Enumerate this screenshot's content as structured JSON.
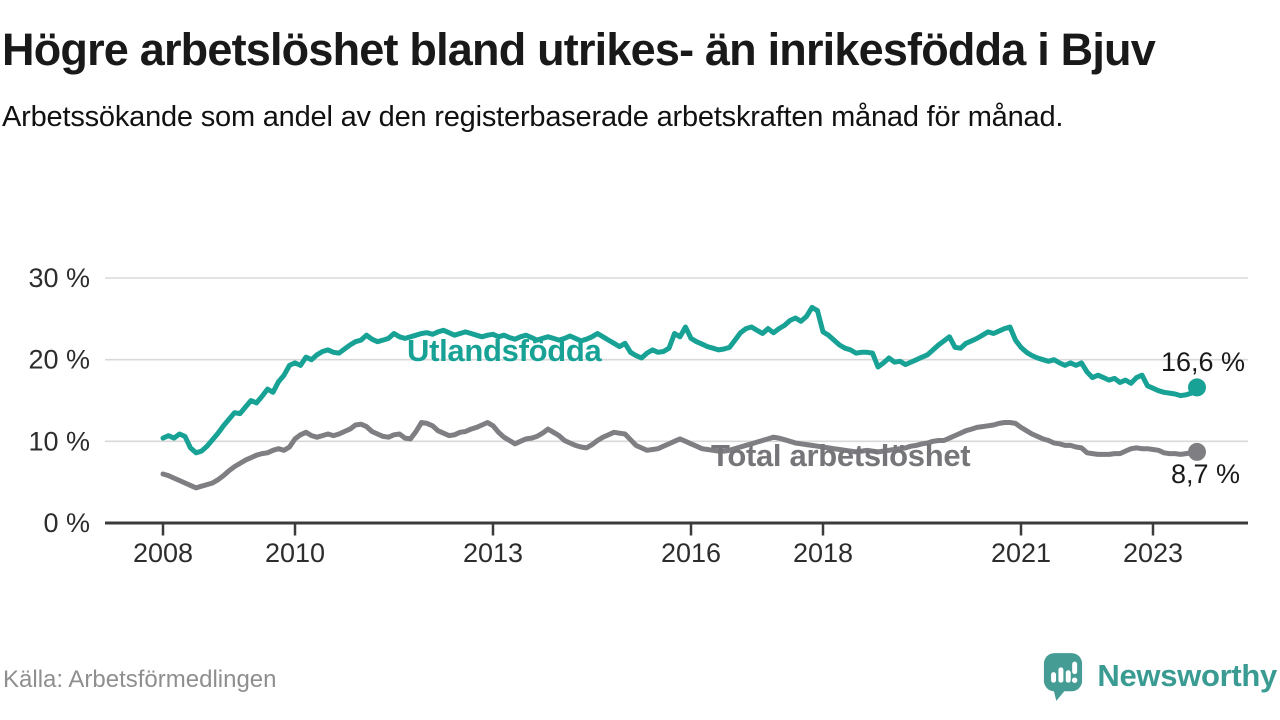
{
  "header": {
    "title": "Högre arbetslöshet bland utrikes- än inrikesfödda i Bjuv",
    "subtitle": "Arbetssökande som andel av den registerbaserade arbetskraften månad för månad."
  },
  "footer": {
    "source": "Källa: Arbetsförmedlingen",
    "brand_name": "Newsworthy",
    "brand_icon": "newsworthy-speech-bubble-bar-chart-icon"
  },
  "colors": {
    "teal_line": "#17A295",
    "gray_line": "#7F7F83",
    "gray_label": "#76767A",
    "grid": "#D8D8D8",
    "axis": "#3B3B3B",
    "tick_text": "#2D2D2D",
    "brand_teal": "#459C95"
  },
  "chart_data": {
    "type": "line",
    "title": "Högre arbetslöshet bland utrikes- än inrikesfödda i Bjuv",
    "xlabel": "",
    "ylabel": "Arbetssökande som andel av den registerbaserade arbetskraften",
    "unit": "%",
    "frequency": "monthly",
    "x_start": "2008-01",
    "x_end": "2023-09",
    "ylim": [
      0,
      31
    ],
    "grid": "horizontal",
    "y_ticks": [
      {
        "value": 30,
        "label": "30 %"
      },
      {
        "value": 20,
        "label": "20 %"
      },
      {
        "value": 10,
        "label": "10 %"
      },
      {
        "value": 0,
        "label": "0 %"
      }
    ],
    "x_ticks": [
      {
        "year": 2008,
        "label": "2008"
      },
      {
        "year": 2010,
        "label": "2010"
      },
      {
        "year": 2013,
        "label": "2013"
      },
      {
        "year": 2016,
        "label": "2016"
      },
      {
        "year": 2018,
        "label": "2018"
      },
      {
        "year": 2021,
        "label": "2021"
      },
      {
        "year": 2023,
        "label": "2023"
      }
    ],
    "series": [
      {
        "name": "Utlandsfödda",
        "color": "#17A295",
        "end_label": "16,6 %",
        "last_value": 16.6,
        "values": [
          10.4,
          10.7,
          10.4,
          10.9,
          10.6,
          9.2,
          8.6,
          8.8,
          9.4,
          10.2,
          11.0,
          11.9,
          12.7,
          13.5,
          13.4,
          14.2,
          15.0,
          14.7,
          15.5,
          16.4,
          16.0,
          17.3,
          18.1,
          19.3,
          19.6,
          19.3,
          20.3,
          20.0,
          20.6,
          21.0,
          21.2,
          20.9,
          20.8,
          21.3,
          21.8,
          22.2,
          22.4,
          23.0,
          22.5,
          22.2,
          22.4,
          22.6,
          23.2,
          22.8,
          22.6,
          22.8,
          23.0,
          23.2,
          23.3,
          23.1,
          23.4,
          23.6,
          23.3,
          23.0,
          23.2,
          23.4,
          23.2,
          23.0,
          22.8,
          23.0,
          23.1,
          22.8,
          23.0,
          22.7,
          22.5,
          22.8,
          23.0,
          22.7,
          22.4,
          22.6,
          22.8,
          22.6,
          22.4,
          22.6,
          22.9,
          22.6,
          22.3,
          22.5,
          22.8,
          23.2,
          22.8,
          22.4,
          22.0,
          21.6,
          22.0,
          20.9,
          20.5,
          20.2,
          20.8,
          21.2,
          20.9,
          21.0,
          21.4,
          23.2,
          22.8,
          24.0,
          22.6,
          22.2,
          21.9,
          21.6,
          21.4,
          21.2,
          21.3,
          21.5,
          22.4,
          23.3,
          23.8,
          24.0,
          23.6,
          23.2,
          23.8,
          23.3,
          23.8,
          24.2,
          24.8,
          25.1,
          24.7,
          25.3,
          26.4,
          26.0,
          23.4,
          23.0,
          22.4,
          21.8,
          21.4,
          21.2,
          20.8,
          20.9,
          20.9,
          20.8,
          19.1,
          19.6,
          20.2,
          19.7,
          19.8,
          19.4,
          19.7,
          20.0,
          20.3,
          20.6,
          21.2,
          21.8,
          22.3,
          22.8,
          21.5,
          21.4,
          22.0,
          22.3,
          22.6,
          23.0,
          23.4,
          23.2,
          23.5,
          23.8,
          24.0,
          22.4,
          21.5,
          20.9,
          20.5,
          20.2,
          20.0,
          19.8,
          20.0,
          19.6,
          19.3,
          19.6,
          19.3,
          19.6,
          18.5,
          17.8,
          18.1,
          17.8,
          17.5,
          17.7,
          17.2,
          17.5,
          17.1,
          17.8,
          18.1,
          16.8,
          16.5,
          16.2,
          16.0,
          15.9,
          15.8,
          15.6,
          15.7,
          15.9,
          16.6
        ]
      },
      {
        "name": "Total arbetslöshet",
        "color": "#7F7F83",
        "end_label": "8,7 %",
        "last_value": 8.7,
        "values": [
          6.0,
          5.8,
          5.5,
          5.2,
          4.9,
          4.6,
          4.3,
          4.5,
          4.7,
          4.9,
          5.3,
          5.8,
          6.4,
          6.9,
          7.3,
          7.7,
          8.0,
          8.3,
          8.5,
          8.6,
          8.9,
          9.1,
          8.9,
          9.3,
          10.3,
          10.8,
          11.1,
          10.7,
          10.5,
          10.7,
          10.9,
          10.7,
          10.9,
          11.2,
          11.5,
          12.0,
          12.1,
          11.8,
          11.2,
          10.9,
          10.6,
          10.5,
          10.8,
          10.9,
          10.4,
          10.3,
          11.2,
          12.3,
          12.2,
          11.9,
          11.3,
          11.0,
          10.7,
          10.8,
          11.1,
          11.2,
          11.5,
          11.7,
          12.0,
          12.3,
          11.9,
          11.1,
          10.5,
          10.1,
          9.7,
          10.0,
          10.3,
          10.4,
          10.6,
          11.0,
          11.5,
          11.1,
          10.7,
          10.1,
          9.8,
          9.5,
          9.3,
          9.2,
          9.6,
          10.1,
          10.5,
          10.8,
          11.1,
          11.0,
          10.9,
          10.2,
          9.5,
          9.2,
          8.9,
          9.0,
          9.1,
          9.4,
          9.7,
          10.0,
          10.3,
          10.0,
          9.7,
          9.4,
          9.1,
          9.0,
          8.9,
          8.8,
          8.8,
          8.9,
          9.1,
          9.3,
          9.5,
          9.7,
          9.9,
          10.1,
          10.3,
          10.5,
          10.4,
          10.2,
          10.0,
          9.8,
          9.7,
          9.6,
          9.5,
          9.4,
          9.3,
          9.2,
          9.1,
          9.0,
          8.9,
          8.8,
          8.7,
          8.8,
          8.9,
          8.8,
          8.7,
          8.8,
          8.9,
          9.0,
          9.1,
          9.2,
          9.4,
          9.5,
          9.7,
          9.8,
          10.0,
          10.1,
          10.1,
          10.4,
          10.7,
          11.0,
          11.3,
          11.5,
          11.7,
          11.8,
          11.9,
          12.0,
          12.2,
          12.3,
          12.3,
          12.2,
          11.7,
          11.3,
          10.9,
          10.6,
          10.3,
          10.1,
          9.8,
          9.7,
          9.5,
          9.5,
          9.3,
          9.2,
          8.6,
          8.5,
          8.4,
          8.4,
          8.4,
          8.5,
          8.5,
          8.8,
          9.1,
          9.2,
          9.1,
          9.1,
          9.0,
          8.9,
          8.6,
          8.5,
          8.5,
          8.4,
          8.5,
          8.6,
          8.7
        ]
      }
    ]
  }
}
